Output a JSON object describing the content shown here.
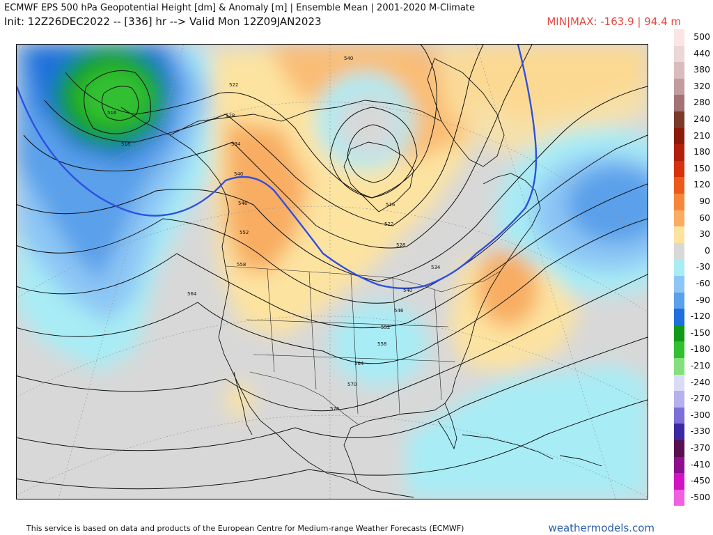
{
  "header": {
    "title": "ECMWF EPS 500 hPa Geopotential Height [dm] & Anomaly [m] | Ensemble Mean | 2001-2020 M-Climate",
    "init_line": "Init: 12Z26DEC2022 -- [336] hr --> Valid Mon 12Z09JAN2023",
    "minmax": "MIN|MAX: -163.9 | 94.4 m"
  },
  "map": {
    "contour_labels": [
      "516",
      "518",
      "522",
      "528",
      "534",
      "540",
      "546",
      "552",
      "558",
      "564",
      "570",
      "576",
      "540",
      "516",
      "522",
      "528",
      "534",
      "540",
      "546",
      "552",
      "558",
      "564"
    ],
    "anomaly_min_m": -163.9,
    "anomaly_max_m": 94.4,
    "highlight_contour_dm": 540
  },
  "legend": {
    "items": [
      {
        "label": "500",
        "color": "#fde4e4"
      },
      {
        "label": "440",
        "color": "#ecd6d6"
      },
      {
        "label": "380",
        "color": "#d9bcbc"
      },
      {
        "label": "320",
        "color": "#c39c9c"
      },
      {
        "label": "280",
        "color": "#a47272"
      },
      {
        "label": "240",
        "color": "#7a3a2a"
      },
      {
        "label": "210",
        "color": "#8b1a0a"
      },
      {
        "label": "180",
        "color": "#b0200a"
      },
      {
        "label": "150",
        "color": "#d6300c"
      },
      {
        "label": "120",
        "color": "#ea5a1c"
      },
      {
        "label": "90",
        "color": "#f6873a"
      },
      {
        "label": "60",
        "color": "#f8ad62"
      },
      {
        "label": "30",
        "color": "#fde3a0"
      },
      {
        "label": "0",
        "color": "#d8d8d8"
      },
      {
        "label": "-30",
        "color": "#a8ecf5"
      },
      {
        "label": "-60",
        "color": "#8dc6f5"
      },
      {
        "label": "-90",
        "color": "#5aa0ea"
      },
      {
        "label": "-120",
        "color": "#1f6fdc"
      },
      {
        "label": "-150",
        "color": "#119a1a"
      },
      {
        "label": "-180",
        "color": "#30c030"
      },
      {
        "label": "-210",
        "color": "#84e07c"
      },
      {
        "label": "-240",
        "color": "#dadcf6"
      },
      {
        "label": "-270",
        "color": "#b6b0ee"
      },
      {
        "label": "-300",
        "color": "#7a70d8"
      },
      {
        "label": "-330",
        "color": "#3d28a4"
      },
      {
        "label": "-370",
        "color": "#5a1050"
      },
      {
        "label": "-410",
        "color": "#8e0e8e"
      },
      {
        "label": "-450",
        "color": "#d014c4"
      },
      {
        "label": "-500",
        "color": "#f060e0"
      }
    ]
  },
  "footer": {
    "attribution": "This service is based on data and products of the European Centre for Medium-range Weather Forecasts (ECMWF)",
    "brand": "weathermodels.com"
  }
}
